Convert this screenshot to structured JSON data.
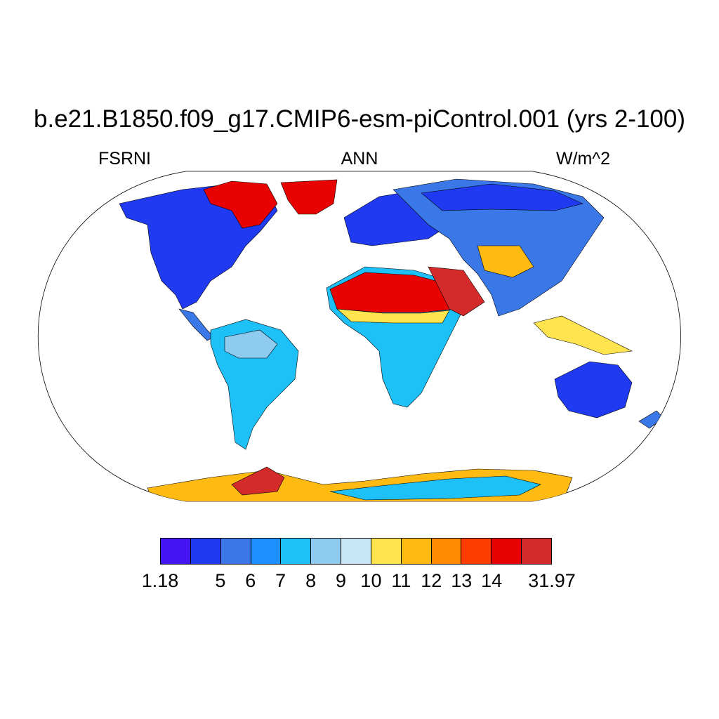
{
  "title": "b.e21.B1850.f09_g17.CMIP6-esm-piControl.001 (yrs 2-100)",
  "subtitles": {
    "left": "FSRNI",
    "center": "ANN",
    "right": "W/m^2"
  },
  "colorbar": {
    "colors": [
      "#4415f2",
      "#1f3af0",
      "#3a78e8",
      "#1e90ff",
      "#1ec0f8",
      "#8ecbee",
      "#c8e6f8",
      "#ffe44f",
      "#ffbb12",
      "#ff8a00",
      "#ff3c00",
      "#e80202",
      "#d52a2a"
    ],
    "labels": [
      "1.18",
      "5",
      "6",
      "7",
      "8",
      "9",
      "10",
      "11",
      "12",
      "13",
      "14",
      "31.97"
    ]
  },
  "land_colors": {
    "ocean": "#ffffff",
    "low": "#1f3af0",
    "mid": "#3a78e8",
    "sky": "#1ec0f8",
    "pale": "#8ecbee",
    "yellow": "#ffe44f",
    "orange": "#ffbb12",
    "hot": "#e80202",
    "deep": "#d52a2a"
  }
}
